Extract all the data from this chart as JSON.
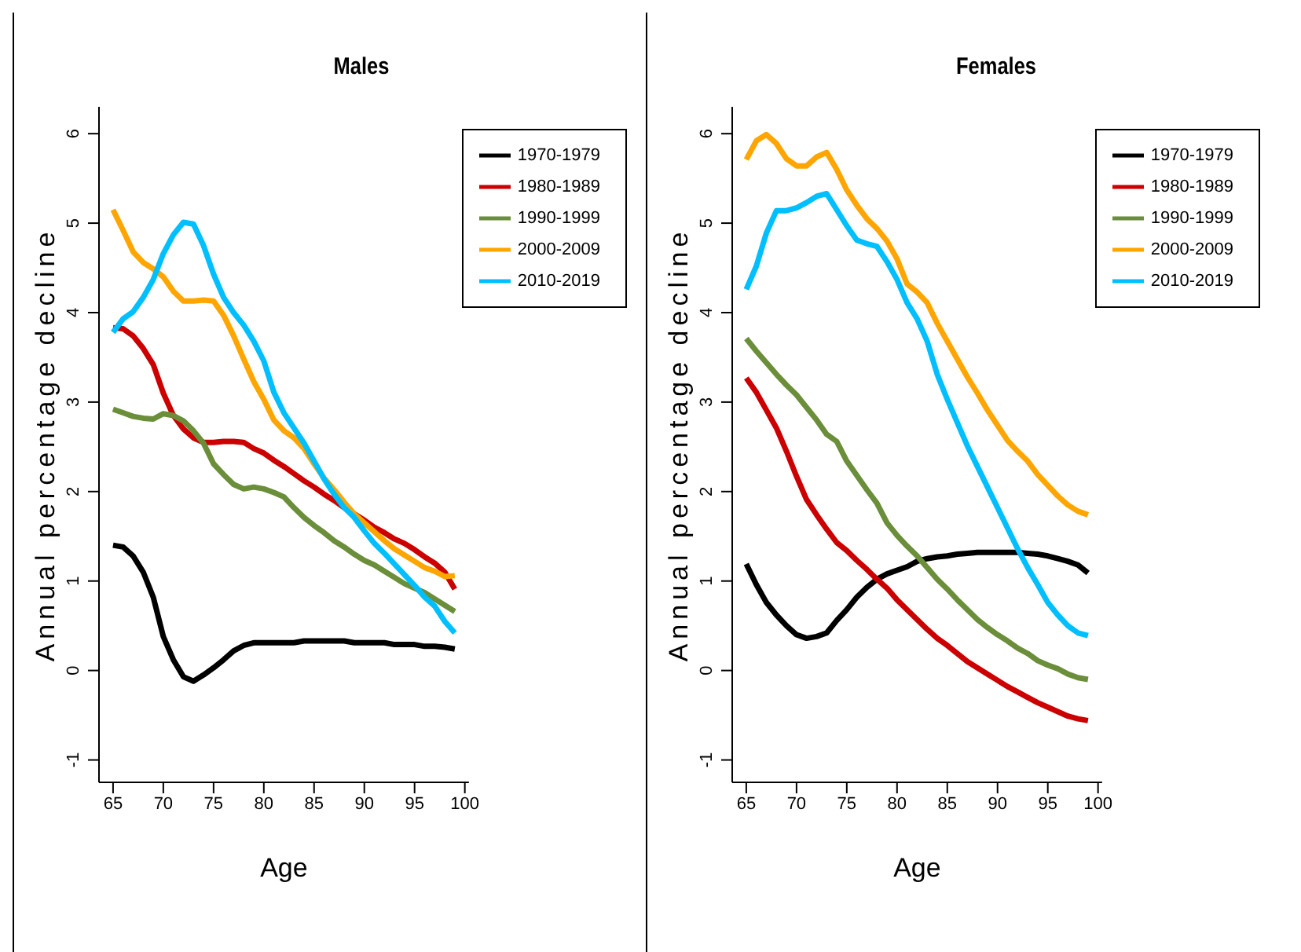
{
  "chart_data": [
    {
      "type": "line",
      "title": "Males",
      "xlabel": "Age",
      "ylabel": "Annual percentage decline",
      "x": [
        65,
        66,
        67,
        68,
        69,
        70,
        71,
        72,
        73,
        74,
        75,
        76,
        77,
        78,
        79,
        80,
        81,
        82,
        83,
        84,
        85,
        86,
        87,
        88,
        89,
        90,
        91,
        92,
        93,
        94,
        95,
        96,
        97,
        98,
        99
      ],
      "xlim": [
        63.6,
        100.4
      ],
      "xticks": [
        65,
        70,
        75,
        80,
        85,
        90,
        95,
        100
      ],
      "ylim": [
        -1.25,
        6.3
      ],
      "yticks": [
        -1,
        0,
        1,
        2,
        3,
        4,
        5,
        6
      ],
      "grid": false,
      "legend": "top right",
      "marker": "none",
      "line_style": "solid",
      "series": [
        {
          "name": "1970-1979",
          "color": "#000000",
          "values": [
            1.4,
            1.38,
            1.28,
            1.1,
            0.82,
            0.38,
            0.12,
            -0.07,
            -0.12,
            -0.05,
            0.03,
            0.12,
            0.22,
            0.28,
            0.31,
            0.31,
            0.31,
            0.31,
            0.31,
            0.33,
            0.33,
            0.33,
            0.33,
            0.33,
            0.31,
            0.31,
            0.31,
            0.31,
            0.29,
            0.29,
            0.29,
            0.27,
            0.27,
            0.26,
            0.24
          ]
        },
        {
          "name": "1980-1989",
          "color": "#cc0000",
          "values": [
            3.83,
            3.82,
            3.74,
            3.6,
            3.42,
            3.1,
            2.85,
            2.7,
            2.6,
            2.55,
            2.55,
            2.56,
            2.56,
            2.55,
            2.48,
            2.43,
            2.35,
            2.28,
            2.2,
            2.12,
            2.05,
            1.97,
            1.9,
            1.82,
            1.75,
            1.68,
            1.6,
            1.54,
            1.47,
            1.42,
            1.35,
            1.27,
            1.2,
            1.1,
            0.91
          ]
        },
        {
          "name": "1990-1999",
          "color": "#6b8e3a",
          "values": [
            2.92,
            2.88,
            2.84,
            2.82,
            2.81,
            2.87,
            2.85,
            2.79,
            2.68,
            2.54,
            2.31,
            2.19,
            2.08,
            2.03,
            2.05,
            2.03,
            1.99,
            1.94,
            1.82,
            1.71,
            1.62,
            1.54,
            1.45,
            1.38,
            1.3,
            1.23,
            1.18,
            1.11,
            1.04,
            0.97,
            0.92,
            0.87,
            0.8,
            0.73,
            0.66
          ]
        },
        {
          "name": "2000-2009",
          "color": "#ffa500",
          "values": [
            5.15,
            4.92,
            4.68,
            4.56,
            4.49,
            4.4,
            4.24,
            4.13,
            4.13,
            4.14,
            4.13,
            3.97,
            3.74,
            3.48,
            3.23,
            3.03,
            2.8,
            2.68,
            2.6,
            2.48,
            2.31,
            2.15,
            2.02,
            1.88,
            1.75,
            1.65,
            1.55,
            1.45,
            1.36,
            1.29,
            1.22,
            1.15,
            1.11,
            1.05,
            1.06
          ]
        },
        {
          "name": "2010-2019",
          "color": "#00bfff",
          "values": [
            3.78,
            3.93,
            4.01,
            4.17,
            4.37,
            4.66,
            4.87,
            5.01,
            4.99,
            4.75,
            4.43,
            4.17,
            4.0,
            3.86,
            3.68,
            3.46,
            3.11,
            2.88,
            2.71,
            2.54,
            2.34,
            2.14,
            1.97,
            1.82,
            1.71,
            1.56,
            1.42,
            1.31,
            1.19,
            1.07,
            0.95,
            0.82,
            0.72,
            0.55,
            0.42
          ]
        }
      ]
    },
    {
      "type": "line",
      "title": "Females",
      "xlabel": "Age",
      "ylabel": "Annual percentage decline",
      "x": [
        65,
        66,
        67,
        68,
        69,
        70,
        71,
        72,
        73,
        74,
        75,
        76,
        77,
        78,
        79,
        80,
        81,
        82,
        83,
        84,
        85,
        86,
        87,
        88,
        89,
        90,
        91,
        92,
        93,
        94,
        95,
        96,
        97,
        98,
        99
      ],
      "xlim": [
        63.6,
        100.4
      ],
      "xticks": [
        65,
        70,
        75,
        80,
        85,
        90,
        95,
        100
      ],
      "ylim": [
        -1.25,
        6.3
      ],
      "yticks": [
        -1,
        0,
        1,
        2,
        3,
        4,
        5,
        6
      ],
      "grid": false,
      "legend": "top right",
      "marker": "none",
      "line_style": "solid",
      "series": [
        {
          "name": "1970-1979",
          "color": "#000000",
          "values": [
            1.19,
            0.96,
            0.76,
            0.62,
            0.5,
            0.4,
            0.36,
            0.38,
            0.42,
            0.56,
            0.68,
            0.82,
            0.93,
            1.02,
            1.08,
            1.12,
            1.16,
            1.22,
            1.25,
            1.27,
            1.28,
            1.3,
            1.31,
            1.32,
            1.32,
            1.32,
            1.32,
            1.32,
            1.31,
            1.3,
            1.28,
            1.25,
            1.22,
            1.18,
            1.09
          ]
        },
        {
          "name": "1980-1989",
          "color": "#cc0000",
          "values": [
            3.27,
            3.11,
            2.91,
            2.71,
            2.45,
            2.17,
            1.91,
            1.74,
            1.58,
            1.43,
            1.34,
            1.23,
            1.13,
            1.02,
            0.92,
            0.79,
            0.68,
            0.57,
            0.46,
            0.36,
            0.28,
            0.19,
            0.1,
            0.03,
            -0.04,
            -0.11,
            -0.18,
            -0.24,
            -0.3,
            -0.36,
            -0.41,
            -0.46,
            -0.51,
            -0.54,
            -0.56
          ]
        },
        {
          "name": "1990-1999",
          "color": "#6b8e3a",
          "values": [
            3.71,
            3.57,
            3.44,
            3.31,
            3.19,
            3.08,
            2.94,
            2.8,
            2.64,
            2.56,
            2.34,
            2.18,
            2.02,
            1.87,
            1.65,
            1.51,
            1.39,
            1.28,
            1.15,
            1.02,
            0.91,
            0.79,
            0.68,
            0.57,
            0.48,
            0.4,
            0.33,
            0.25,
            0.19,
            0.11,
            0.06,
            0.02,
            -0.04,
            -0.08,
            -0.1
          ]
        },
        {
          "name": "2000-2009",
          "color": "#ffa500",
          "values": [
            5.71,
            5.92,
            5.99,
            5.89,
            5.72,
            5.64,
            5.64,
            5.74,
            5.79,
            5.6,
            5.37,
            5.2,
            5.05,
            4.94,
            4.8,
            4.6,
            4.32,
            4.23,
            4.11,
            3.88,
            3.68,
            3.48,
            3.28,
            3.1,
            2.91,
            2.74,
            2.57,
            2.45,
            2.34,
            2.19,
            2.07,
            1.95,
            1.85,
            1.78,
            1.74
          ]
        },
        {
          "name": "2010-2019",
          "color": "#00bfff",
          "values": [
            4.26,
            4.52,
            4.89,
            5.14,
            5.14,
            5.17,
            5.23,
            5.3,
            5.33,
            5.15,
            4.97,
            4.81,
            4.77,
            4.74,
            4.57,
            4.37,
            4.11,
            3.93,
            3.68,
            3.31,
            3.03,
            2.77,
            2.51,
            2.28,
            2.05,
            1.82,
            1.59,
            1.36,
            1.15,
            0.96,
            0.76,
            0.62,
            0.5,
            0.42,
            0.39
          ]
        }
      ]
    }
  ]
}
